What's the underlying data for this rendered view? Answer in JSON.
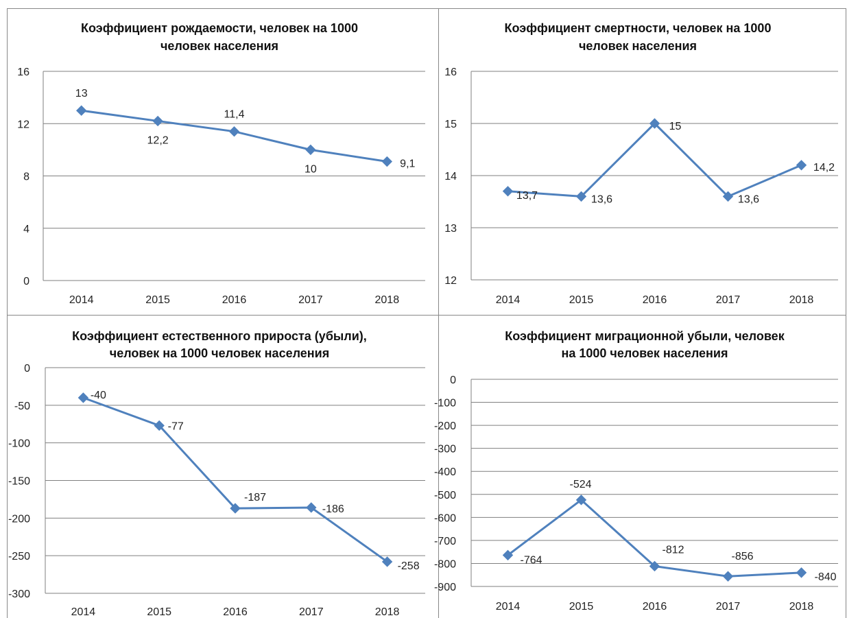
{
  "colors": {
    "series": "#4F81BD",
    "grid": "#7f7f7f",
    "frame": "#888888",
    "text": "#222222"
  },
  "chart_data": [
    {
      "type": "line",
      "title": [
        "Коэффициент рождаемости, человек на 1000",
        "человек населения"
      ],
      "categories": [
        "2014",
        "2015",
        "2016",
        "2017",
        "2018"
      ],
      "series": [
        {
          "values": [
            13,
            12.2,
            11.4,
            10,
            9.1
          ],
          "labels": [
            "13",
            "12,2",
            "11,4",
            "10",
            "9,1"
          ]
        }
      ],
      "ylim": [
        0,
        16
      ],
      "yticks": [
        0,
        4,
        8,
        12,
        16
      ],
      "ytick_labels": [
        "0",
        "4",
        "8",
        "12",
        "16"
      ],
      "grid": true,
      "legend": "none"
    },
    {
      "type": "line",
      "title": [
        "Коэффициент смертности, человек на 1000",
        "человек населения"
      ],
      "categories": [
        "2014",
        "2015",
        "2016",
        "2017",
        "2018"
      ],
      "series": [
        {
          "values": [
            13.7,
            13.6,
            15,
            13.6,
            14.2
          ],
          "labels": [
            "13,7",
            "13,6",
            "15",
            "13,6",
            "14,2"
          ]
        }
      ],
      "ylim": [
        12,
        16
      ],
      "yticks": [
        12,
        13,
        14,
        15,
        16
      ],
      "ytick_labels": [
        "12",
        "13",
        "14",
        "15",
        "16"
      ],
      "grid": true,
      "legend": "none"
    },
    {
      "type": "line",
      "title": [
        "Коэффициент естественного прироста (убыли),",
        "человек на 1000 человек населения"
      ],
      "categories": [
        "2014",
        "2015",
        "2016",
        "2017",
        "2018"
      ],
      "series": [
        {
          "values": [
            -40,
            -77,
            -187,
            -186,
            -258
          ],
          "labels": [
            "-40",
            "-77",
            "-187",
            "-186",
            "-258"
          ]
        }
      ],
      "ylim": [
        -300,
        0
      ],
      "yticks": [
        0,
        -50,
        -100,
        -150,
        -200,
        -250,
        -300
      ],
      "ytick_labels": [
        "0",
        "-50",
        "-100",
        "-150",
        "-200",
        "-250",
        "-300"
      ],
      "grid": true,
      "legend": "none"
    },
    {
      "type": "line",
      "title": [
        "Коэффициент миграционной убыли, человек",
        "на 1000 человек населения"
      ],
      "categories": [
        "2014",
        "2015",
        "2016",
        "2017",
        "2018"
      ],
      "series": [
        {
          "values": [
            -764,
            -524,
            -812,
            -856,
            -840
          ],
          "labels": [
            "-764",
            "-524",
            "-812",
            "-856",
            "-840"
          ]
        }
      ],
      "ylim": [
        -900,
        0
      ],
      "yticks": [
        0,
        -100,
        -200,
        -300,
        -400,
        -500,
        -600,
        -700,
        -800,
        -900
      ],
      "ytick_labels": [
        "0",
        "-100",
        "-200",
        "-300",
        "-400",
        "-500",
        "-600",
        "-700",
        "-800",
        "-900"
      ],
      "grid": true,
      "legend": "none"
    }
  ]
}
